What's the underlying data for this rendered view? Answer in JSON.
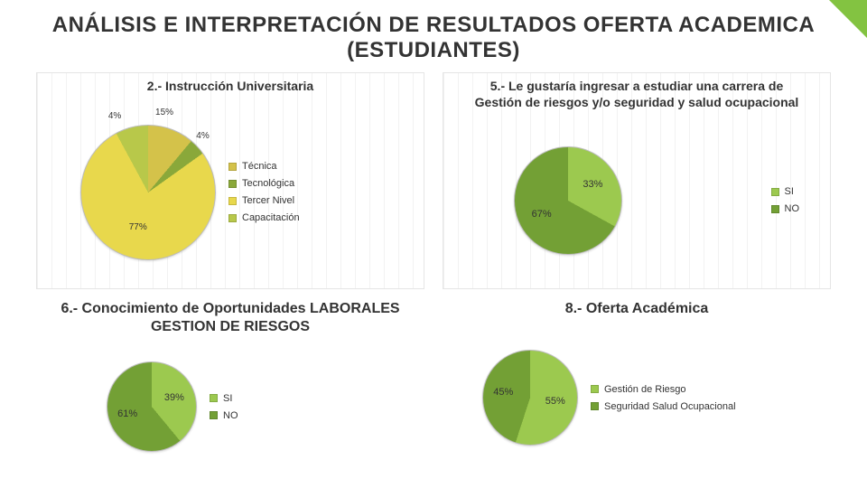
{
  "page_title": "ANÁLISIS E INTERPRETACIÓN DE RESULTADOS OFERTA ACADEMICA (ESTUDIANTES)",
  "corner_accent_color": "#83c341",
  "charts": {
    "c2": {
      "title": "2.- Instrucción Universitaria",
      "type": "pie",
      "diameter": 150,
      "background": "striped",
      "slices": [
        {
          "label": "Técnica",
          "value": 0.15,
          "text": "15%",
          "color": "#d4c24a"
        },
        {
          "label": "Tecnológica",
          "value": 0.04,
          "text": "4%",
          "color": "#8aa83a"
        },
        {
          "label": "Tercer Nivel",
          "value": 0.77,
          "text": "77%",
          "color": "#e8d84c"
        },
        {
          "label": "Capacitación",
          "value": 0.04,
          "text": "4%",
          "color": "#b8c84a"
        }
      ],
      "legend_colors": [
        "#d4c24a",
        "#8aa83a",
        "#e8d84c",
        "#b8c84a"
      ],
      "legend_labels": [
        "Técnica",
        "Tecnológica",
        "Tercer Nivel",
        "Capacitación"
      ],
      "label_fontsize": 10
    },
    "c5": {
      "title": "5.- Le gustaría ingresar a estudiar una carrera de Gestión de riesgos y/o seguridad y salud ocupacional",
      "type": "pie",
      "diameter": 120,
      "background": "striped",
      "slices": [
        {
          "label": "SI",
          "value": 0.33,
          "text": "33%",
          "color": "#9cc94f"
        },
        {
          "label": "NO",
          "value": 0.67,
          "text": "67%",
          "color": "#73a035"
        }
      ],
      "legend_colors": [
        "#9cc94f",
        "#73a035"
      ],
      "legend_labels": [
        "SI",
        "NO"
      ],
      "label_fontsize": 11
    },
    "c6": {
      "title": "6.- Conocimiento de Oportunidades LABORALES GESTION DE RIESGOS",
      "type": "pie",
      "diameter": 100,
      "background": "plain",
      "slices": [
        {
          "label": "SI",
          "value": 0.39,
          "text": "39%",
          "color": "#9cc94f"
        },
        {
          "label": "NO",
          "value": 0.61,
          "text": "61%",
          "color": "#73a035"
        }
      ],
      "legend_colors": [
        "#9cc94f",
        "#73a035"
      ],
      "legend_labels": [
        "SI",
        "NO"
      ],
      "label_fontsize": 11
    },
    "c8": {
      "title": "8.- Oferta Académica",
      "type": "pie",
      "diameter": 106,
      "background": "plain",
      "slices": [
        {
          "label": "Gestión de Riesgo",
          "value": 0.55,
          "text": "55%",
          "color": "#9cc94f"
        },
        {
          "label": "Seguridad Salud Ocupacional",
          "value": 0.45,
          "text": "45%",
          "color": "#73a035"
        }
      ],
      "legend_colors": [
        "#9cc94f",
        "#73a035"
      ],
      "legend_labels": [
        "Gestión de Riesgo",
        "Seguridad Salud Ocupacional"
      ],
      "label_fontsize": 11
    }
  }
}
